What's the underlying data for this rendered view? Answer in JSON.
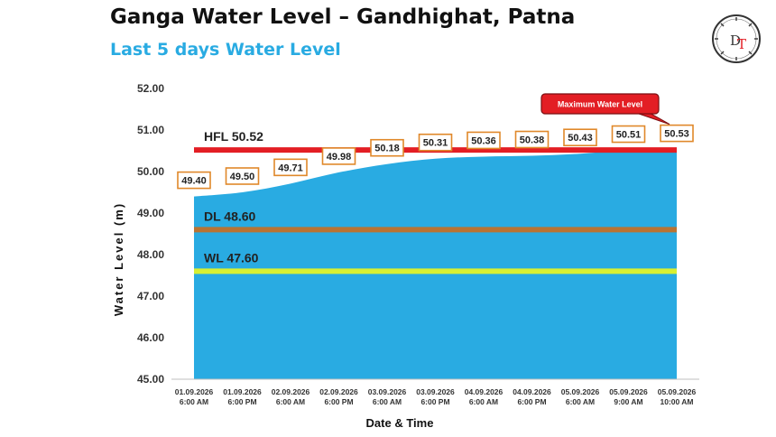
{
  "colors": {
    "area": "#29abe2",
    "hfl": "#e31e24",
    "dl": "#b87333",
    "wl": "#d7f033",
    "label_border": "#e0882a",
    "callout": "#e31e24"
  },
  "logo": {
    "letters": "DT",
    "icon": "clock-logo-icon"
  },
  "chart_data": {
    "type": "area",
    "title": "Ganga Water Level – Gandhighat, Patna",
    "subtitle": "Last 5 days Water Level",
    "xlabel": "Date & Time",
    "ylabel": "Water Level (m)",
    "ylim": [
      45,
      52
    ],
    "yticks": [
      "45.00",
      "46.00",
      "47.00",
      "48.00",
      "49.00",
      "50.00",
      "51.00",
      "52.00"
    ],
    "categories": [
      [
        "01.09.2026",
        "6:00 AM"
      ],
      [
        "01.09.2026",
        "6:00 PM"
      ],
      [
        "02.09.2026",
        "6:00 AM"
      ],
      [
        "02.09.2026",
        "6:00 PM"
      ],
      [
        "03.09.2026",
        "6:00 AM"
      ],
      [
        "03.09.2026",
        "6:00 PM"
      ],
      [
        "04.09.2026",
        "6:00 AM"
      ],
      [
        "04.09.2026",
        "6:00 PM"
      ],
      [
        "05.09.2026",
        "6:00 AM"
      ],
      [
        "05.09.2026",
        "9:00 AM"
      ],
      [
        "05.09.2026",
        "10:00 AM"
      ]
    ],
    "values": [
      49.4,
      49.5,
      49.71,
      49.98,
      50.18,
      50.31,
      50.36,
      50.38,
      50.43,
      50.51,
      50.53
    ],
    "data_labels": [
      "49.40",
      "49.50",
      "49.71",
      "49.98",
      "50.18",
      "50.31",
      "50.36",
      "50.38",
      "50.43",
      "50.51",
      "50.53"
    ],
    "reference_lines": [
      {
        "label": "HFL 50.52",
        "value": 50.52
      },
      {
        "label": "DL 48.60",
        "value": 48.6
      },
      {
        "label": "WL 47.60",
        "value": 47.6
      }
    ],
    "annotation": {
      "text": "Maximum Water Level",
      "point_index": 10
    },
    "grid": false
  }
}
